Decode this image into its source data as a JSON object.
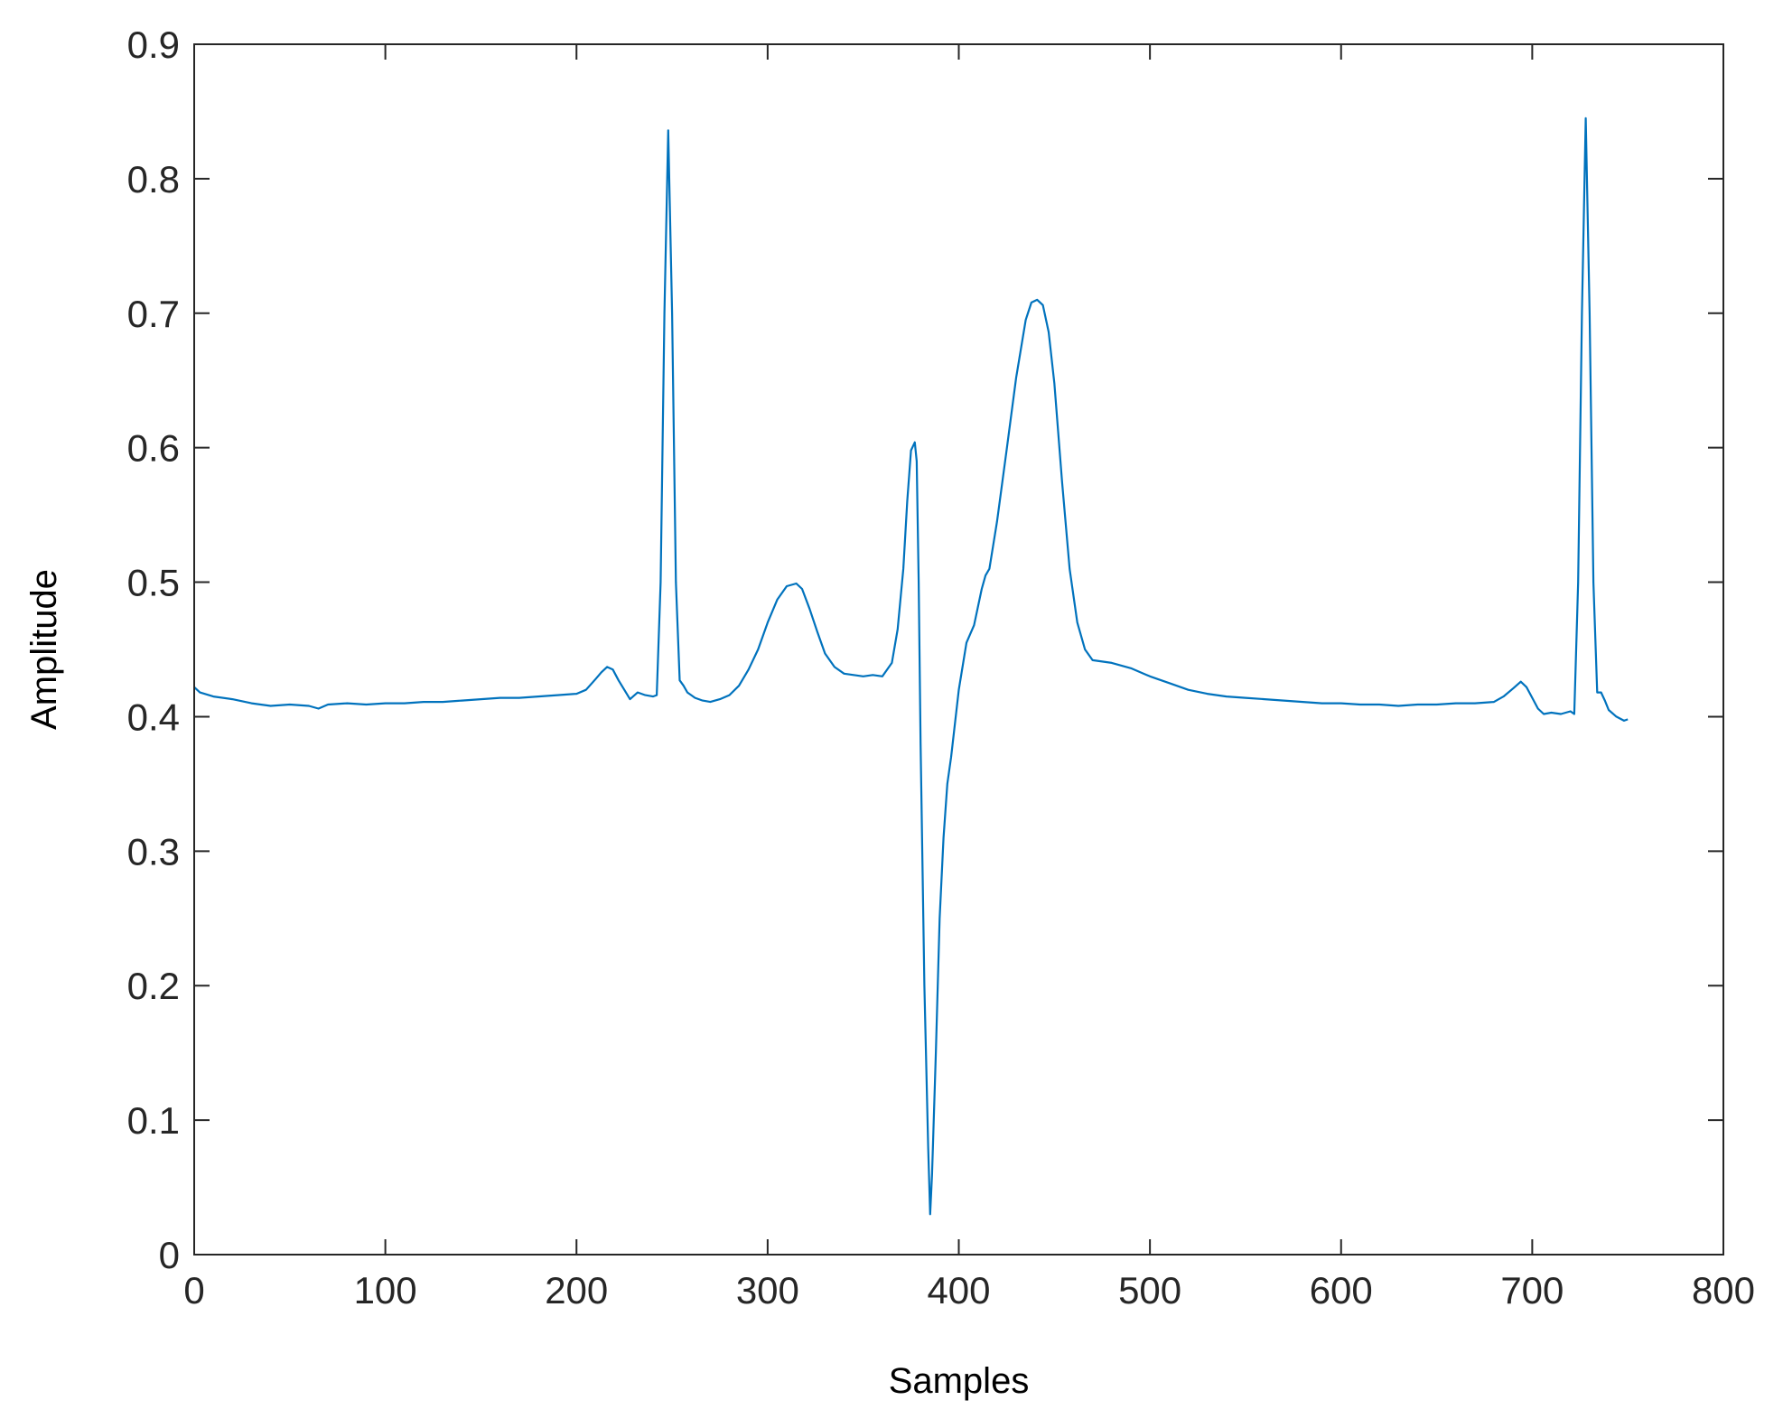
{
  "chart_data": {
    "type": "line",
    "title": "",
    "xlabel": "Samples",
    "ylabel": "Amplitude",
    "xlim": [
      0,
      800
    ],
    "ylim": [
      0,
      0.9
    ],
    "xticks": [
      0,
      100,
      200,
      300,
      400,
      500,
      600,
      700,
      800
    ],
    "yticks": [
      0,
      0.1,
      0.2,
      0.3,
      0.4,
      0.5,
      0.6,
      0.7,
      0.8,
      0.9
    ],
    "xtick_labels": [
      "0",
      "100",
      "200",
      "300",
      "400",
      "500",
      "600",
      "700",
      "800"
    ],
    "ytick_labels": [
      "0",
      "0.1",
      "0.2",
      "0.3",
      "0.4",
      "0.5",
      "0.6",
      "0.7",
      "0.8",
      "0.9"
    ],
    "grid": false,
    "series": [
      {
        "color": "#0072BD",
        "x": [
          0,
          3,
          10,
          20,
          30,
          40,
          50,
          60,
          65,
          70,
          80,
          90,
          100,
          110,
          120,
          130,
          140,
          150,
          160,
          170,
          180,
          190,
          200,
          205,
          210,
          213,
          216,
          219,
          222,
          225,
          228,
          232,
          236,
          240,
          242,
          244,
          246,
          248,
          250,
          252,
          254,
          256,
          258,
          262,
          266,
          270,
          275,
          280,
          285,
          290,
          295,
          300,
          305,
          310,
          315,
          318,
          322,
          326,
          330,
          335,
          340,
          345,
          350,
          355,
          360,
          365,
          368,
          371,
          373,
          375,
          377,
          378,
          379,
          380,
          382,
          384,
          385,
          386,
          388,
          390,
          392,
          394,
          396,
          400,
          404,
          408,
          412,
          414,
          416,
          420,
          425,
          430,
          435,
          438,
          441,
          444,
          447,
          450,
          454,
          458,
          462,
          466,
          470,
          480,
          490,
          500,
          510,
          520,
          530,
          540,
          550,
          560,
          570,
          580,
          590,
          600,
          610,
          620,
          630,
          640,
          650,
          660,
          670,
          680,
          685,
          690,
          694,
          697,
          700,
          703,
          706,
          710,
          715,
          720,
          722,
          724,
          726,
          728,
          730,
          732,
          734,
          736,
          738,
          740,
          744,
          748,
          750
        ],
        "y": [
          0.422,
          0.418,
          0.415,
          0.413,
          0.41,
          0.408,
          0.409,
          0.408,
          0.406,
          0.409,
          0.41,
          0.409,
          0.41,
          0.41,
          0.411,
          0.411,
          0.412,
          0.413,
          0.414,
          0.414,
          0.415,
          0.416,
          0.417,
          0.42,
          0.428,
          0.433,
          0.437,
          0.435,
          0.427,
          0.42,
          0.413,
          0.418,
          0.416,
          0.415,
          0.416,
          0.5,
          0.7,
          0.836,
          0.7,
          0.5,
          0.427,
          0.423,
          0.418,
          0.414,
          0.412,
          0.411,
          0.413,
          0.416,
          0.423,
          0.435,
          0.45,
          0.47,
          0.487,
          0.497,
          0.499,
          0.495,
          0.48,
          0.463,
          0.447,
          0.437,
          0.432,
          0.431,
          0.43,
          0.431,
          0.43,
          0.44,
          0.465,
          0.51,
          0.56,
          0.598,
          0.604,
          0.59,
          0.5,
          0.38,
          0.2,
          0.08,
          0.03,
          0.06,
          0.15,
          0.25,
          0.31,
          0.35,
          0.37,
          0.42,
          0.455,
          0.468,
          0.495,
          0.505,
          0.51,
          0.545,
          0.598,
          0.652,
          0.695,
          0.708,
          0.71,
          0.706,
          0.686,
          0.648,
          0.575,
          0.51,
          0.47,
          0.45,
          0.442,
          0.44,
          0.436,
          0.43,
          0.425,
          0.42,
          0.417,
          0.415,
          0.414,
          0.413,
          0.412,
          0.411,
          0.41,
          0.41,
          0.409,
          0.409,
          0.408,
          0.409,
          0.409,
          0.41,
          0.41,
          0.411,
          0.415,
          0.421,
          0.426,
          0.422,
          0.414,
          0.406,
          0.402,
          0.403,
          0.402,
          0.404,
          0.402,
          0.5,
          0.7,
          0.845,
          0.7,
          0.5,
          0.418,
          0.418,
          0.412,
          0.405,
          0.4,
          0.397,
          0.398
        ]
      }
    ]
  }
}
